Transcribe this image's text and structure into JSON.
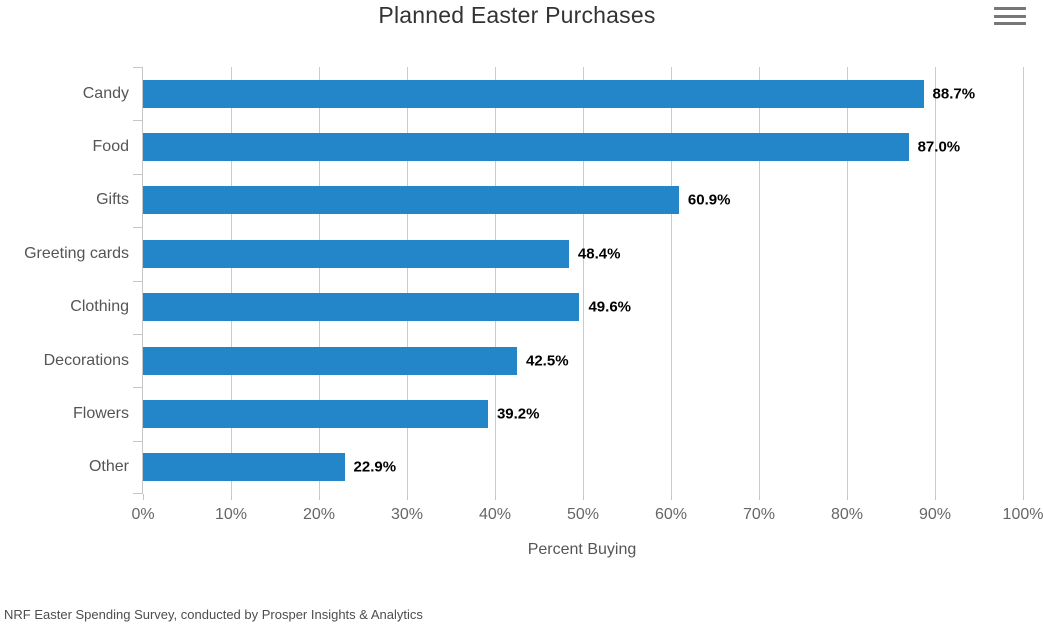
{
  "header": {
    "title": "Planned Easter Purchases",
    "menu_icon": "hamburger-menu-icon"
  },
  "chart_data": {
    "type": "bar",
    "orientation": "horizontal",
    "title": "Planned Easter Purchases",
    "categories": [
      "Candy",
      "Food",
      "Gifts",
      "Greeting cards",
      "Clothing",
      "Decorations",
      "Flowers",
      "Other"
    ],
    "values": [
      88.7,
      87.0,
      60.9,
      48.4,
      49.6,
      42.5,
      39.2,
      22.9
    ],
    "data_labels": [
      "88.7%",
      "87.0%",
      "60.9%",
      "48.4%",
      "49.6%",
      "42.5%",
      "39.2%",
      "22.9%"
    ],
    "xlabel": "Percent Buying",
    "ylabel": "",
    "xlim": [
      0,
      100
    ],
    "x_ticks": [
      "0%",
      "10%",
      "20%",
      "30%",
      "40%",
      "50%",
      "60%",
      "70%",
      "80%",
      "90%",
      "100%"
    ],
    "grid": true,
    "legend": "none"
  },
  "colors": {
    "bar": "#2386c8",
    "gridline": "#cbcbcb",
    "axis": "#c6c6c6",
    "title_text": "#333333",
    "category_text": "#555555",
    "tick_text": "#666666",
    "value_text": "#000000",
    "menu_icon": "#777777"
  },
  "footer": {
    "credit": "NRF Easter Spending Survey, conducted by Prosper Insights & Analytics"
  }
}
